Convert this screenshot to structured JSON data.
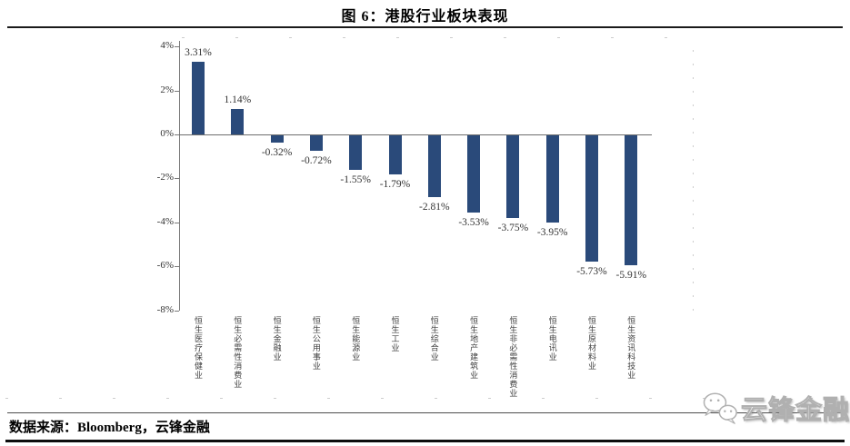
{
  "header": {
    "title": "图 6：港股行业板块表现"
  },
  "footer": {
    "source": "数据来源：Bloomberg，云锋金融",
    "watermark": "云锋金融"
  },
  "colors": {
    "bar": "#2a4a7a",
    "axis": "#7a7a7a",
    "zero_line": "#6e6e6e",
    "text": "#333333"
  },
  "chart_data": {
    "type": "bar",
    "title": "港股行业板块表现",
    "categories": [
      "恒生医疗保健业",
      "恒生必需性消费业",
      "恒生金融业",
      "恒生公用事业",
      "恒生能源业",
      "恒生工业",
      "恒生综合业",
      "恒生地产建筑业",
      "恒生非必需性消费业",
      "恒生电讯业",
      "恒生原材料业",
      "恒生资讯科技业"
    ],
    "values": [
      3.31,
      1.14,
      -0.32,
      -0.72,
      -1.55,
      -1.79,
      -2.81,
      -3.53,
      -3.75,
      -3.95,
      -5.73,
      -5.91
    ],
    "value_labels": [
      "3.31%",
      "1.14%",
      "-0.32%",
      "-0.72%",
      "-1.55%",
      "-1.79%",
      "-2.81%",
      "-3.53%",
      "-3.75%",
      "-3.95%",
      "-5.73%",
      "-5.91%"
    ],
    "xlabel": "",
    "ylabel": "",
    "y_tick_labels": [
      "4%",
      "2%",
      "0%",
      "-2%",
      "-4%",
      "-6%",
      "-8%"
    ],
    "y_tick_values": [
      4,
      2,
      0,
      -2,
      -4,
      -6,
      -8
    ],
    "ylim": [
      -8,
      4
    ],
    "grid": false,
    "legend": "none"
  }
}
